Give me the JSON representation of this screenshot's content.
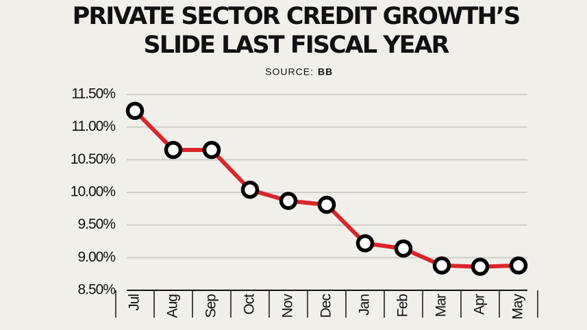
{
  "chart_data": {
    "type": "line",
    "title": [
      "PRIVATE SECTOR CREDIT GROWTH’S",
      "SLIDE LAST FISCAL YEAR"
    ],
    "source_label": "SOURCE:",
    "source": "BB",
    "categories": [
      "Jul",
      "Aug",
      "Sep",
      "Oct",
      "Nov",
      "Dec",
      "Jan",
      "Feb",
      "Mar",
      "Apr",
      "May"
    ],
    "values": [
      11.25,
      10.65,
      10.65,
      10.04,
      9.87,
      9.81,
      9.22,
      9.14,
      8.88,
      8.86,
      8.88
    ],
    "color": "#d9262a",
    "ylim": [
      8.5,
      11.5
    ],
    "yticks": [
      {
        "value": 8.5,
        "label": "8.50%"
      },
      {
        "value": 9,
        "label": "9.00%"
      },
      {
        "value": 9.5,
        "label": "9.50%"
      },
      {
        "value": 10,
        "label": "10.00%"
      },
      {
        "value": 10.5,
        "label": "10.50%"
      },
      {
        "value": 11,
        "label": "11.00%"
      },
      {
        "value": 11.5,
        "label": "11.50%"
      }
    ],
    "grid": true
  }
}
